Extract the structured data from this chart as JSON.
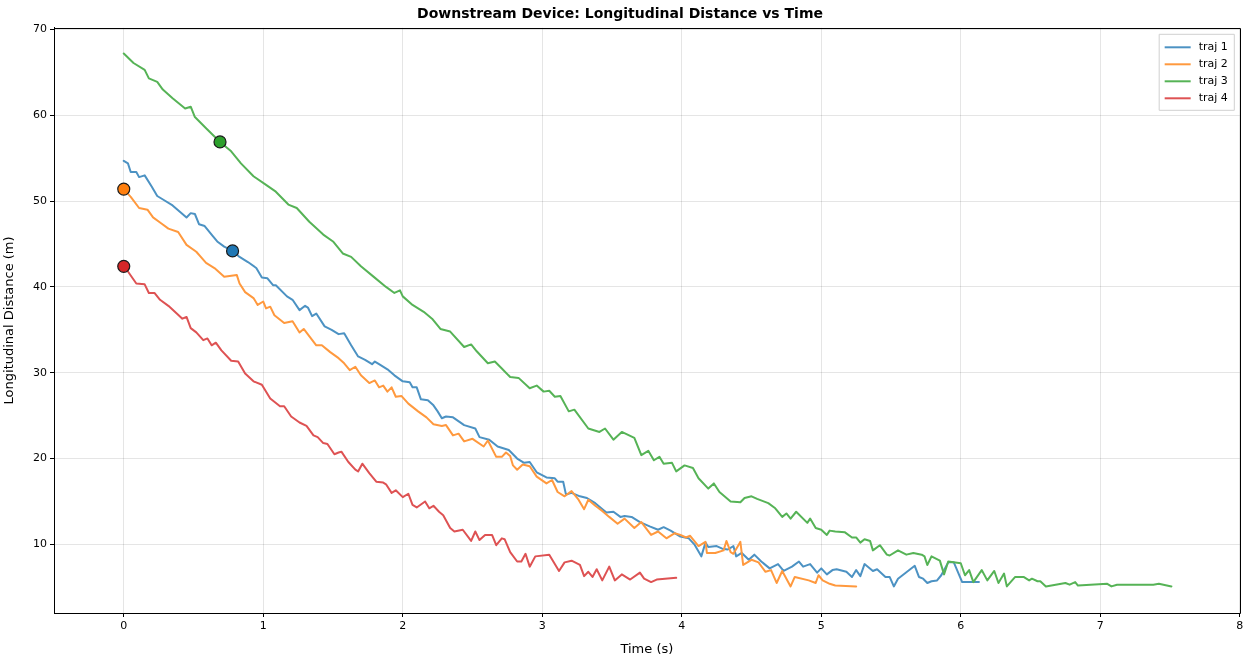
{
  "chart_data": {
    "type": "line",
    "title": "Downstream Device: Longitudinal Distance vs Time",
    "xlabel": "Time (s)",
    "ylabel": "Longitudinal Distance (m)",
    "xlim": [
      -0.5,
      8
    ],
    "ylim": [
      2,
      70.2
    ],
    "xticks": [
      0,
      1,
      2,
      3,
      4,
      5,
      6,
      7,
      8
    ],
    "yticks": [
      10,
      20,
      30,
      40,
      50,
      60,
      70
    ],
    "grid": true,
    "legend": "top right",
    "series": [
      {
        "name": "traj 1",
        "color": "#4c92c3",
        "x": [
          0,
          0.03,
          0.05,
          0.09,
          0.11,
          0.15,
          0.2,
          0.24,
          0.29,
          0.35,
          0.4,
          0.45,
          0.48,
          0.51,
          0.54,
          0.58,
          0.64,
          0.67,
          0.72,
          0.78,
          0.83,
          0.89,
          0.95,
          0.99,
          1.03,
          1.07,
          1.09,
          1.17,
          1.21,
          1.26,
          1.3,
          1.32,
          1.35,
          1.38,
          1.44,
          1.49,
          1.54,
          1.58,
          1.63,
          1.68,
          1.73,
          1.78,
          1.8,
          1.83,
          1.89,
          1.94,
          2.0,
          2.05,
          2.07,
          2.1,
          2.13,
          2.18,
          2.22,
          2.25,
          2.28,
          2.31,
          2.36,
          2.44,
          2.52,
          2.55,
          2.62,
          2.68,
          2.76,
          2.82,
          2.87,
          2.91,
          2.96,
          3.03,
          3.09,
          3.11,
          3.15,
          3.17,
          3.21,
          3.27,
          3.32,
          3.38,
          3.46,
          3.51,
          3.56,
          3.59,
          3.64,
          3.7,
          3.77,
          3.83,
          3.87,
          3.92,
          3.99,
          4.05,
          4.09,
          4.14,
          4.17,
          4.19,
          4.25,
          4.29,
          4.33,
          4.37,
          4.39,
          4.43,
          4.48,
          4.52,
          4.57,
          4.63,
          4.69,
          4.73,
          4.79,
          4.84,
          4.87,
          4.92,
          4.97,
          5.0,
          5.04,
          5.08,
          5.11,
          5.18,
          5.22,
          5.25,
          5.28,
          5.31,
          5.37,
          5.4,
          5.46,
          5.49,
          5.52,
          5.55,
          5.67,
          5.7,
          5.73,
          5.76,
          5.79,
          5.83,
          5.86,
          5.91,
          5.95,
          6.01,
          6.13
        ],
        "values": [
          54.7,
          54.4,
          53.4,
          53.4,
          52.8,
          53.0,
          51.7,
          50.6,
          50.1,
          49.5,
          48.8,
          48.1,
          48.6,
          48.5,
          47.3,
          47.1,
          45.9,
          45.3,
          44.7,
          44.2,
          43.5,
          42.9,
          42.2,
          41.1,
          41.0,
          40.2,
          40.2,
          38.9,
          38.5,
          37.3,
          37.8,
          37.6,
          36.6,
          36.9,
          35.4,
          35.0,
          34.5,
          34.6,
          33.2,
          31.9,
          31.5,
          31.0,
          31.3,
          31.0,
          30.4,
          29.7,
          29.0,
          28.9,
          28.3,
          28.3,
          26.9,
          26.8,
          26.2,
          25.5,
          24.7,
          24.9,
          24.8,
          23.9,
          23.5,
          22.5,
          22.2,
          21.4,
          21.0,
          20.0,
          19.5,
          19.6,
          18.4,
          17.8,
          17.7,
          17.3,
          17.3,
          15.8,
          16.0,
          15.6,
          15.4,
          14.8,
          13.7,
          13.8,
          13.2,
          13.3,
          13.2,
          12.6,
          12.1,
          11.7,
          12.0,
          11.6,
          10.9,
          10.7,
          10.0,
          8.6,
          10.2,
          9.7,
          9.8,
          9.5,
          9.4,
          9.8,
          8.6,
          9.0,
          8.2,
          8.8,
          8.0,
          7.2,
          7.7,
          6.9,
          7.4,
          8.0,
          7.4,
          7.7,
          6.7,
          7.2,
          6.5,
          7.0,
          7.1,
          6.8,
          6.2,
          7.0,
          6.3,
          7.7,
          6.9,
          7.1,
          6.2,
          6.2,
          5.1,
          6.0,
          7.5,
          6.2,
          6.0,
          5.5,
          5.7,
          5.8,
          6.4,
          7.9,
          7.9,
          5.6,
          5.6
        ]
      },
      {
        "name": "traj 2",
        "color": "#ff993e",
        "x": [
          0,
          0.05,
          0.11,
          0.17,
          0.21,
          0.27,
          0.32,
          0.39,
          0.45,
          0.52,
          0.59,
          0.65,
          0.72,
          0.81,
          0.83,
          0.87,
          0.93,
          0.96,
          1.0,
          1.02,
          1.05,
          1.08,
          1.15,
          1.21,
          1.26,
          1.29,
          1.38,
          1.42,
          1.48,
          1.54,
          1.58,
          1.62,
          1.66,
          1.7,
          1.76,
          1.8,
          1.83,
          1.86,
          1.89,
          1.92,
          1.95,
          1.99,
          2.04,
          2.11,
          2.17,
          2.22,
          2.28,
          2.31,
          2.36,
          2.4,
          2.44,
          2.5,
          2.58,
          2.61,
          2.67,
          2.71,
          2.74,
          2.77,
          2.79,
          2.82,
          2.86,
          2.91,
          2.96,
          3.03,
          3.07,
          3.11,
          3.16,
          3.21,
          3.26,
          3.3,
          3.33,
          3.38,
          3.43,
          3.48,
          3.54,
          3.59,
          3.66,
          3.71,
          3.78,
          3.83,
          3.89,
          3.95,
          3.99,
          4.03,
          4.06,
          4.12,
          4.17,
          4.18,
          4.24,
          4.3,
          4.32,
          4.35,
          4.37,
          4.41,
          4.42,
          4.44,
          4.5,
          4.55,
          4.6,
          4.64,
          4.68,
          4.72,
          4.78,
          4.81,
          4.91,
          4.96,
          4.98,
          5.01,
          5.06,
          5.1,
          5.25
        ],
        "values": [
          51.4,
          50.5,
          49.2,
          49.0,
          48.1,
          47.4,
          46.8,
          46.4,
          44.9,
          44.1,
          42.8,
          42.2,
          41.2,
          41.4,
          40.4,
          39.4,
          38.7,
          37.9,
          38.3,
          37.5,
          37.7,
          36.7,
          35.8,
          36.0,
          34.7,
          35.1,
          33.2,
          33.2,
          32.4,
          31.7,
          31.1,
          30.3,
          30.7,
          29.7,
          28.8,
          29.1,
          28.3,
          28.5,
          27.8,
          28.3,
          27.2,
          27.3,
          26.4,
          25.5,
          24.8,
          24.0,
          23.8,
          23.9,
          22.7,
          22.9,
          22.0,
          22.3,
          21.4,
          22.1,
          20.2,
          20.2,
          20.7,
          20.3,
          19.2,
          18.7,
          19.3,
          19.1,
          17.9,
          17.1,
          17.5,
          16.1,
          15.6,
          16.2,
          15.2,
          14.1,
          15.2,
          14.5,
          13.9,
          13.2,
          12.4,
          13.0,
          11.9,
          12.6,
          11.1,
          11.5,
          10.7,
          11.3,
          11.1,
          10.8,
          11.0,
          9.8,
          10.3,
          9.0,
          9.0,
          9.3,
          10.4,
          9.1,
          8.9,
          10.0,
          10.3,
          7.6,
          8.2,
          7.9,
          6.8,
          7.0,
          5.5,
          6.9,
          5.1,
          6.2,
          5.8,
          5.5,
          6.4,
          5.8,
          5.4,
          5.2,
          5.1
        ]
      },
      {
        "name": "traj 3",
        "color": "#56b356",
        "x": [
          0,
          0.07,
          0.15,
          0.18,
          0.24,
          0.28,
          0.35,
          0.44,
          0.48,
          0.51,
          0.59,
          0.69,
          0.77,
          0.84,
          0.93,
          1.02,
          1.09,
          1.18,
          1.24,
          1.33,
          1.43,
          1.5,
          1.57,
          1.63,
          1.7,
          1.79,
          1.88,
          1.94,
          1.98,
          2.0,
          2.07,
          2.15,
          2.21,
          2.27,
          2.34,
          2.44,
          2.49,
          2.53,
          2.61,
          2.66,
          2.71,
          2.77,
          2.83,
          2.91,
          2.96,
          3.01,
          3.05,
          3.09,
          3.13,
          3.19,
          3.23,
          3.33,
          3.41,
          3.45,
          3.51,
          3.57,
          3.66,
          3.71,
          3.76,
          3.8,
          3.84,
          3.87,
          3.93,
          3.96,
          4.02,
          4.08,
          4.12,
          4.19,
          4.23,
          4.27,
          4.35,
          4.42,
          4.45,
          4.5,
          4.54,
          4.62,
          4.67,
          4.72,
          4.75,
          4.78,
          4.82,
          4.9,
          4.92,
          4.96,
          5.0,
          5.04,
          5.06,
          5.1,
          5.17,
          5.22,
          5.25,
          5.28,
          5.31,
          5.35,
          5.37,
          5.42,
          5.47,
          5.49,
          5.55,
          5.61,
          5.66,
          5.72,
          5.74,
          5.76,
          5.79,
          5.85,
          5.88,
          5.91,
          6.0,
          6.03,
          6.06,
          6.09,
          6.15,
          6.19,
          6.24,
          6.27,
          6.31,
          6.33,
          6.39,
          6.45,
          6.49,
          6.51,
          6.55,
          6.57,
          6.61,
          6.75,
          6.78,
          6.82,
          6.84,
          7.05,
          7.08,
          7.12,
          7.38,
          7.42,
          7.51
        ],
        "values": [
          67.2,
          66.1,
          65.3,
          64.3,
          63.9,
          63.0,
          62.0,
          60.8,
          61.0,
          59.8,
          58.5,
          56.9,
          55.8,
          54.4,
          52.9,
          51.9,
          51.1,
          49.6,
          49.2,
          47.6,
          46.1,
          45.3,
          43.9,
          43.5,
          42.4,
          41.2,
          40.0,
          39.3,
          39.6,
          38.9,
          37.9,
          37.1,
          36.3,
          35.1,
          34.8,
          33.0,
          33.3,
          32.5,
          31.1,
          31.3,
          30.5,
          29.5,
          29.4,
          28.2,
          28.5,
          27.8,
          27.9,
          27.2,
          27.3,
          25.5,
          25.7,
          23.5,
          23.1,
          23.5,
          22.2,
          23.1,
          22.4,
          20.4,
          20.9,
          19.8,
          20.2,
          19.4,
          19.5,
          18.5,
          19.2,
          18.9,
          17.7,
          16.5,
          17.1,
          16.1,
          15.0,
          14.9,
          15.4,
          15.6,
          15.3,
          14.8,
          14.2,
          13.2,
          13.6,
          13.0,
          13.8,
          12.5,
          13.0,
          11.9,
          11.7,
          11.1,
          11.6,
          11.5,
          11.4,
          10.8,
          10.8,
          10.2,
          10.6,
          10.4,
          9.3,
          9.9,
          8.8,
          8.7,
          9.3,
          8.8,
          9.0,
          8.8,
          8.6,
          7.6,
          8.6,
          8.1,
          6.5,
          8.0,
          7.8,
          6.4,
          7.0,
          5.6,
          7.0,
          5.8,
          6.9,
          5.5,
          6.6,
          5.1,
          6.2,
          6.2,
          5.8,
          6.0,
          5.7,
          5.7,
          5.1,
          5.5,
          5.3,
          5.6,
          5.2,
          5.4,
          5.1,
          5.3,
          5.3,
          5.4,
          5.1
        ]
      },
      {
        "name": "traj 4",
        "color": "#de5253",
        "x": [
          0,
          0.03,
          0.09,
          0.15,
          0.18,
          0.22,
          0.26,
          0.32,
          0.38,
          0.42,
          0.45,
          0.48,
          0.52,
          0.57,
          0.6,
          0.63,
          0.66,
          0.7,
          0.77,
          0.82,
          0.87,
          0.93,
          0.99,
          1.05,
          1.12,
          1.15,
          1.2,
          1.26,
          1.31,
          1.36,
          1.39,
          1.43,
          1.46,
          1.51,
          1.54,
          1.56,
          1.61,
          1.66,
          1.68,
          1.71,
          1.76,
          1.81,
          1.86,
          1.88,
          1.92,
          1.95,
          2.0,
          2.04,
          2.07,
          2.1,
          2.16,
          2.19,
          2.22,
          2.26,
          2.29,
          2.34,
          2.37,
          2.43,
          2.49,
          2.52,
          2.55,
          2.59,
          2.64,
          2.67,
          2.71,
          2.73,
          2.77,
          2.82,
          2.85,
          2.88,
          2.91,
          2.95,
          3.05,
          3.12,
          3.16,
          3.21,
          3.27,
          3.3,
          3.33,
          3.36,
          3.39,
          3.43,
          3.48,
          3.52,
          3.57,
          3.63,
          3.7,
          3.73,
          3.78,
          3.82,
          3.96
        ],
        "values": [
          42.4,
          41.8,
          40.4,
          40.3,
          39.3,
          39.3,
          38.5,
          37.8,
          36.9,
          36.3,
          36.5,
          35.2,
          34.7,
          33.8,
          34.0,
          33.2,
          33.5,
          32.6,
          31.4,
          31.3,
          29.9,
          29.0,
          28.6,
          27.0,
          26.1,
          26.1,
          24.9,
          24.2,
          23.8,
          22.7,
          22.5,
          21.8,
          21.7,
          20.5,
          20.7,
          20.8,
          19.6,
          18.7,
          18.5,
          19.4,
          18.3,
          17.3,
          17.2,
          17.0,
          16.0,
          16.3,
          15.5,
          15.9,
          14.6,
          14.3,
          15.0,
          14.2,
          14.5,
          13.8,
          13.4,
          11.9,
          11.5,
          11.7,
          10.4,
          11.5,
          10.5,
          11.1,
          11.1,
          9.9,
          10.7,
          10.6,
          9.1,
          8.0,
          8.0,
          8.9,
          7.4,
          8.6,
          8.8,
          6.9,
          7.9,
          8.1,
          7.6,
          6.3,
          6.8,
          6.2,
          7.1,
          5.8,
          7.4,
          5.8,
          6.5,
          5.9,
          6.7,
          6.0,
          5.6,
          5.9,
          6.1
        ]
      },
      {
        "type": "scatter",
        "marker": "circle",
        "color": "#1f77b4",
        "x": [
          0.78
        ],
        "values": [
          44.2
        ]
      },
      {
        "type": "scatter",
        "marker": "circle",
        "color": "#ff7f0e",
        "x": [
          0
        ],
        "values": [
          51.4
        ]
      },
      {
        "type": "scatter",
        "marker": "circle",
        "color": "#2ca02c",
        "x": [
          0.69
        ],
        "values": [
          56.9
        ]
      },
      {
        "type": "scatter",
        "marker": "circle",
        "color": "#d62728",
        "x": [
          0
        ],
        "values": [
          42.4
        ]
      }
    ]
  }
}
